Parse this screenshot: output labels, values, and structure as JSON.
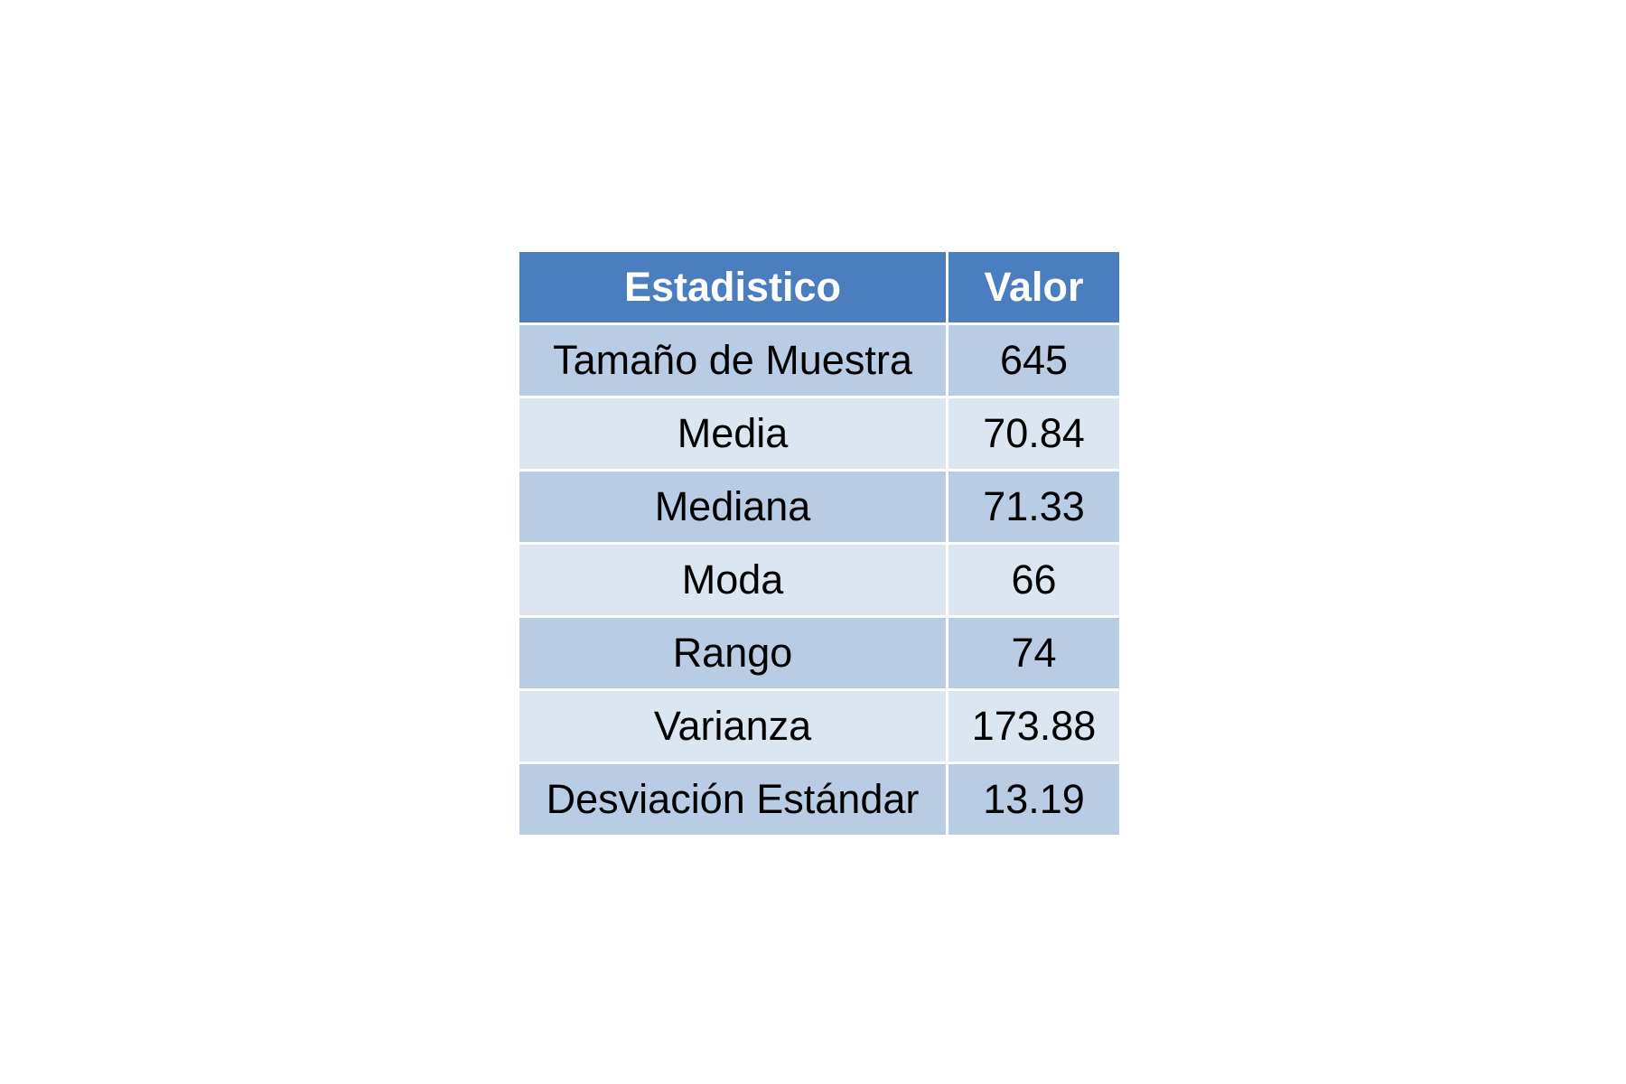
{
  "chart_data": {
    "type": "table",
    "columns": [
      "Estadistico",
      "Valor"
    ],
    "rows": [
      {
        "label": "Tamaño de Muestra",
        "value": "645"
      },
      {
        "label": "Media",
        "value": "70.84"
      },
      {
        "label": "Mediana",
        "value": "71.33"
      },
      {
        "label": "Moda",
        "value": "66"
      },
      {
        "label": "Rango",
        "value": "74"
      },
      {
        "label": "Varianza",
        "value": "173.88"
      },
      {
        "label": "Desviación Estándar",
        "value": "13.19"
      }
    ],
    "colors": {
      "header_bg": "#4a7ebf",
      "header_text": "#ffffff",
      "row_dark": "#b8cce4",
      "row_light": "#dce6f1"
    }
  }
}
